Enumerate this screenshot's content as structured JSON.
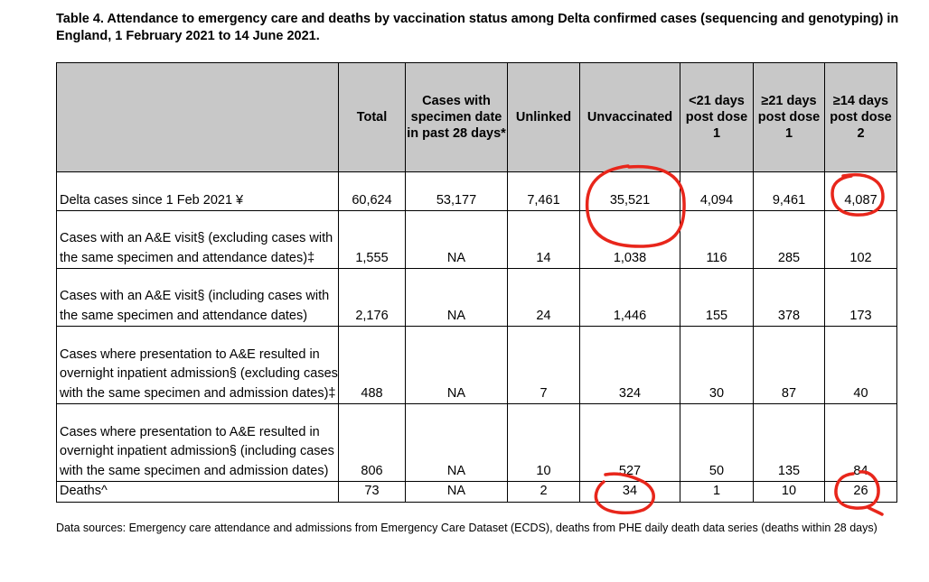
{
  "caption": "Table 4. Attendance to emergency care and deaths by vaccination status among Delta confirmed cases (sequencing and genotyping) in England, 1 February 2021 to 14 June 2021.",
  "table": {
    "headers": [
      "",
      "Total",
      "Cases with specimen date in past 28 days*",
      "Unlinked",
      "Unvaccinated",
      "<21 days post dose 1",
      "≥21 days post dose 1",
      "≥14 days post dose 2"
    ],
    "rows": [
      {
        "label": "Delta cases since 1 Feb 2021 ¥",
        "values": [
          "60,624",
          "53,177",
          "7,461",
          "35,521",
          "4,094",
          "9,461",
          "4,087"
        ]
      },
      {
        "label": "Cases with an A&E visit§ (excluding cases with the same specimen and attendance dates)‡",
        "values": [
          "1,555",
          "NA",
          "14",
          "1,038",
          "116",
          "285",
          "102"
        ]
      },
      {
        "label": "Cases with an A&E visit§ (including cases with the same specimen and attendance dates)",
        "values": [
          "2,176",
          "NA",
          "24",
          "1,446",
          "155",
          "378",
          "173"
        ]
      },
      {
        "label": "Cases where presentation to A&E resulted in overnight inpatient admission§ (excluding cases with the same specimen and admission dates)‡",
        "values": [
          "488",
          "NA",
          "7",
          "324",
          "30",
          "87",
          "40"
        ]
      },
      {
        "label": "Cases where presentation to A&E resulted in overnight inpatient admission§ (including cases with the same specimen and admission dates)",
        "values": [
          "806",
          "NA",
          "10",
          "527",
          "50",
          "135",
          "84"
        ]
      },
      {
        "label": "Deaths^",
        "values": [
          "73",
          "NA",
          "2",
          "34",
          "1",
          "10",
          "26"
        ]
      }
    ]
  },
  "source": "Data sources: Emergency care attendance and admissions from Emergency Care Dataset (ECDS), deaths from PHE daily death data series (deaths within 28 days)",
  "annotation_color": "#e8261b"
}
